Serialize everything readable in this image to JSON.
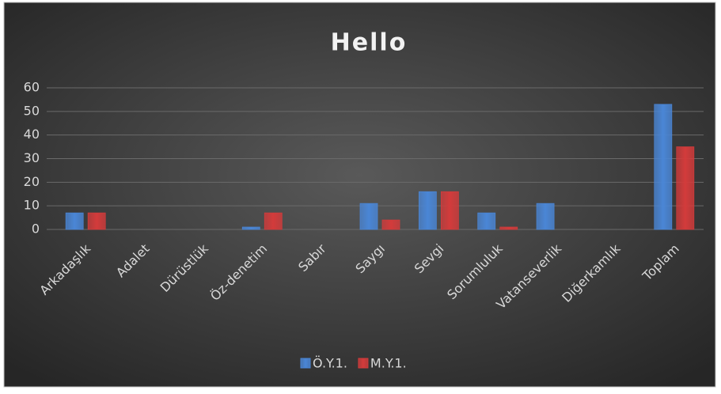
{
  "chart_data": {
    "type": "bar",
    "title": "Hello",
    "categories": [
      "Arkadaşlık",
      "Adalet",
      "Dürüstlük",
      "Öz-denetim",
      "Sabır",
      "Saygı",
      "Sevgi",
      "Sorumluluk",
      "Vatanseverlik",
      "Diğerkamlık",
      "Toplam"
    ],
    "series": [
      {
        "name": "Ö.Y.1.",
        "color": "#4a86d6",
        "values": [
          7,
          0,
          0,
          1,
          0,
          11,
          16,
          7,
          11,
          0,
          53
        ]
      },
      {
        "name": "M.Y.1.",
        "color": "#d33b3b",
        "values": [
          7,
          0,
          0,
          7,
          0,
          4,
          16,
          1,
          0,
          0,
          35
        ]
      }
    ],
    "ylim": [
      0,
      60
    ],
    "yticks": [
      0,
      10,
      20,
      30,
      40,
      50,
      60
    ],
    "grid": true,
    "legend": "bottom"
  }
}
